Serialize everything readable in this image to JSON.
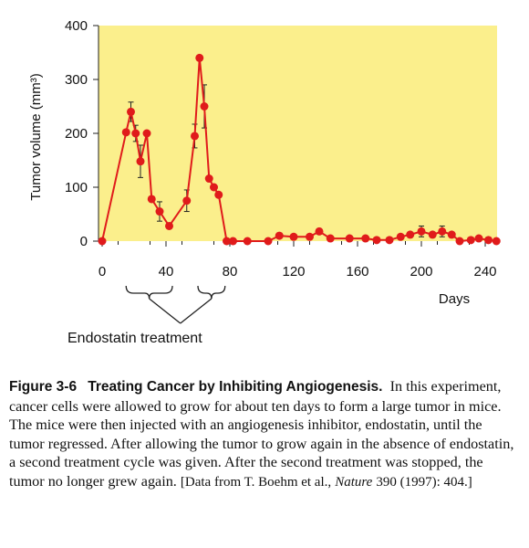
{
  "chart_data": {
    "type": "line",
    "background_color": "#fbef8c",
    "line_color": "#e01b1b",
    "ylabel": "Tumor volume (mm³)",
    "xlabel": "Days",
    "xlim": [
      0,
      250
    ],
    "ylim": [
      0,
      400
    ],
    "xticks": [
      0,
      40,
      80,
      120,
      160,
      200,
      240
    ],
    "yticks": [
      0,
      100,
      200,
      300,
      400
    ],
    "grid": false,
    "series": [
      {
        "x": [
          0,
          15,
          18,
          21,
          24,
          28,
          31,
          36,
          42,
          53,
          58,
          61,
          64,
          67,
          70,
          73,
          78,
          82,
          91,
          104,
          111,
          120,
          130,
          136,
          143,
          155,
          165,
          172,
          180,
          187,
          193,
          200,
          207,
          213,
          219,
          224,
          231,
          236,
          242,
          247
        ],
        "y": [
          0,
          202,
          240,
          200,
          148,
          200,
          78,
          55,
          28,
          75,
          195,
          340,
          250,
          116,
          100,
          86,
          0,
          0,
          0,
          0,
          10,
          8,
          8,
          18,
          5,
          5,
          5,
          2,
          2,
          8,
          12,
          18,
          12,
          18,
          12,
          0,
          2,
          5,
          2,
          0
        ],
        "error": [
          0,
          0,
          18,
          15,
          30,
          0,
          0,
          18,
          0,
          20,
          22,
          0,
          40,
          0,
          0,
          0,
          0,
          0,
          0,
          0,
          0,
          0,
          0,
          5,
          0,
          0,
          0,
          0,
          0,
          0,
          0,
          10,
          0,
          10,
          0,
          0,
          0,
          0,
          0,
          0
        ]
      }
    ],
    "annotation": "Endostatin treatment",
    "treatment_periods": [
      [
        15,
        44
      ],
      [
        60,
        77
      ]
    ]
  },
  "caption": {
    "label": "Figure 3-6",
    "title": "Treating Cancer by Inhibiting Angiogenesis.",
    "body": "In this experiment, cancer cells were allowed to grow for about ten days to form a large tumor in mice. The mice were then injected with an angiogenesis inhibitor, endostatin, until the tumor regressed. After allowing the tumor to grow again in the absence of endostatin, a second treatment cycle was given. After the second treatment was stopped, the tumor no longer grew again.",
    "source_prefix": "[Data from T. Boehm et al.,",
    "journal": "Nature",
    "source_suffix": "390 (1997): 404.]"
  }
}
